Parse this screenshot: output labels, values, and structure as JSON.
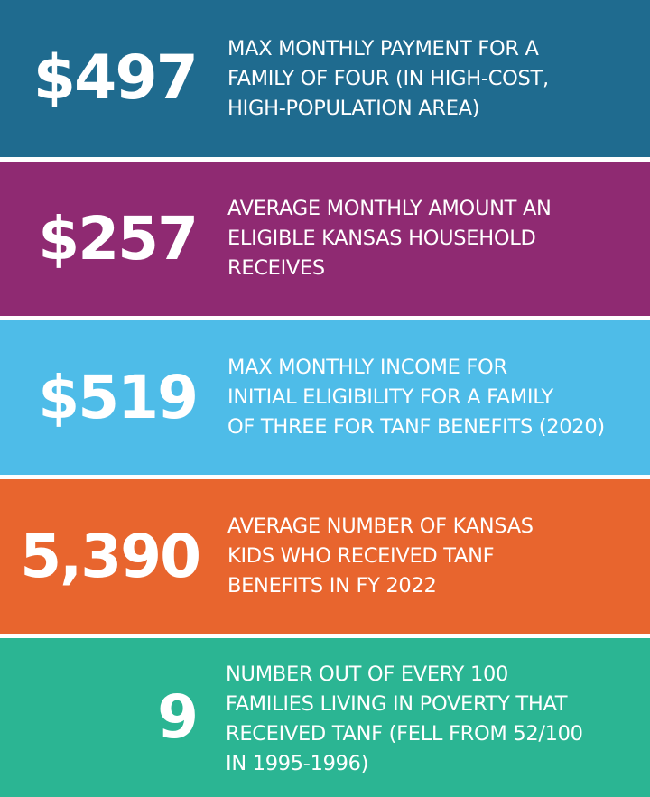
{
  "bands": [
    {
      "stat": "$497",
      "description": "MAX MONTHLY PAYMENT FOR A\nFAMILY OF FOUR (IN HIGH-COST,\nHIGH-POPULATION AREA)",
      "color": "#1f6b8f"
    },
    {
      "stat": "$257",
      "description": "AVERAGE MONTHLY AMOUNT AN\nELIGIBLE KANSAS HOUSEHOLD\nRECEIVES",
      "color": "#8f2a72"
    },
    {
      "stat": "$519",
      "description": "MAX MONTHLY INCOME FOR\nINITIAL ELIGIBILITY FOR A FAMILY\nOF THREE FOR TANF BENEFITS (2020)",
      "color": "#4ebce8"
    },
    {
      "stat": "5,390",
      "description": "AVERAGE NUMBER OF KANSAS\nKIDS WHO RECEIVED TANF\nBENEFITS IN FY 2022",
      "color": "#e8652e"
    },
    {
      "stat": "9",
      "description": "NUMBER OUT OF EVERY 100\nFAMILIES LIVING IN POVERTY THAT\nRECEIVED TANF (FELL FROM 52/100\nIN 1995-1996)",
      "color": "#2bb593"
    }
  ]
}
